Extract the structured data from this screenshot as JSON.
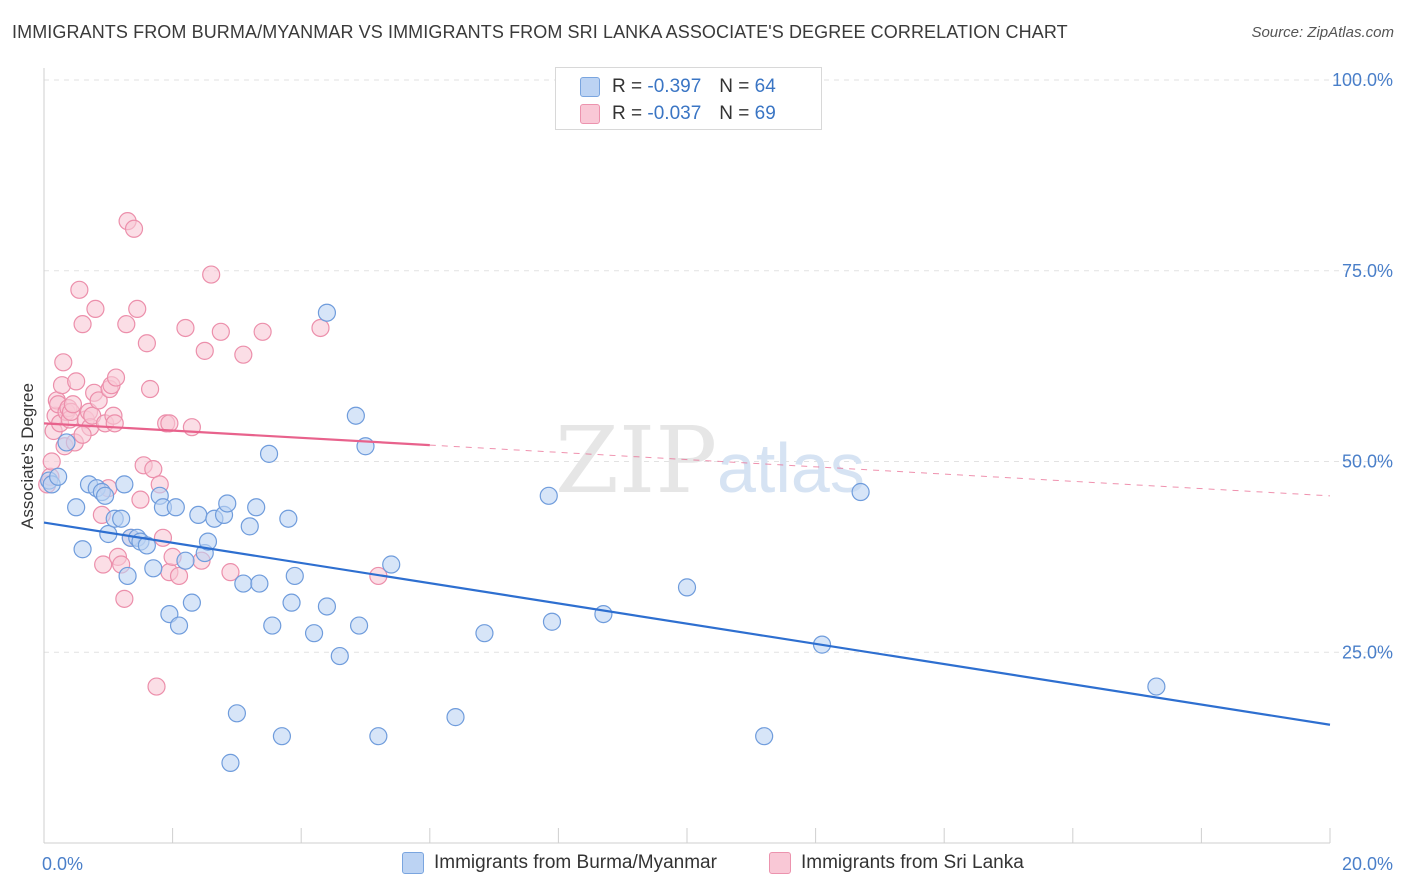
{
  "header": {
    "title": "IMMIGRANTS FROM BURMA/MYANMAR VS IMMIGRANTS FROM SRI LANKA ASSOCIATE'S DEGREE CORRELATION CHART",
    "source": "Source: ZipAtlas.com"
  },
  "watermark": {
    "zip": "ZIP",
    "atlas": "atlas"
  },
  "legend": {
    "rows": [
      {
        "r_label": "R =",
        "r_value": "-0.397",
        "n_label": "N =",
        "n_value": "64"
      },
      {
        "r_label": "R =",
        "r_value": "-0.037",
        "n_label": "N =",
        "n_value": "69"
      }
    ]
  },
  "bottom_legend": {
    "series1": "Immigrants from Burma/Myanmar",
    "series2": "Immigrants from Sri Lanka"
  },
  "colors": {
    "blue_fill": "#bcd3f3",
    "blue_stroke": "#6f9cdc",
    "blue_line": "#2e6fd0",
    "pink_fill": "#f9c8d6",
    "pink_stroke": "#ec8fab",
    "pink_line": "#e8628c",
    "tick_text": "#4a7fc9"
  },
  "chart_data": {
    "type": "scatter",
    "title": "IMMIGRANTS FROM BURMA/MYANMAR VS IMMIGRANTS FROM SRI LANKA ASSOCIATE'S DEGREE CORRELATION CHART",
    "xlabel": "",
    "ylabel": "Associate's Degree",
    "xlim": [
      0,
      20
    ],
    "ylim": [
      0,
      100
    ],
    "x_tick_labels": [
      "0.0%",
      "20.0%"
    ],
    "y_ticks": [
      25,
      50,
      75,
      100
    ],
    "y_tick_labels": [
      "25.0%",
      "50.0%",
      "75.0%",
      "100.0%"
    ],
    "grid": true,
    "legend_position": "top-center",
    "series": [
      {
        "name": "Immigrants from Burma/Myanmar",
        "r": -0.397,
        "n": 64,
        "trend": {
          "x": [
            0,
            20
          ],
          "y": [
            42.0,
            15.5
          ]
        },
        "points": [
          [
            0.08,
            47.5
          ],
          [
            0.12,
            47.0
          ],
          [
            0.22,
            48.0
          ],
          [
            0.35,
            52.5
          ],
          [
            0.5,
            44.0
          ],
          [
            0.6,
            38.5
          ],
          [
            0.7,
            47.0
          ],
          [
            0.82,
            46.5
          ],
          [
            0.9,
            46.0
          ],
          [
            0.95,
            45.5
          ],
          [
            1.0,
            40.5
          ],
          [
            1.1,
            42.5
          ],
          [
            1.2,
            42.5
          ],
          [
            1.25,
            47.0
          ],
          [
            1.3,
            35.0
          ],
          [
            1.35,
            40.0
          ],
          [
            1.45,
            40.0
          ],
          [
            1.5,
            39.5
          ],
          [
            1.6,
            39.0
          ],
          [
            1.7,
            36.0
          ],
          [
            1.8,
            45.5
          ],
          [
            1.85,
            44.0
          ],
          [
            1.95,
            30.0
          ],
          [
            2.05,
            44.0
          ],
          [
            2.1,
            28.5
          ],
          [
            2.2,
            37.0
          ],
          [
            2.3,
            31.5
          ],
          [
            2.4,
            43.0
          ],
          [
            2.5,
            38.0
          ],
          [
            2.55,
            39.5
          ],
          [
            2.65,
            42.5
          ],
          [
            2.8,
            43.0
          ],
          [
            2.85,
            44.5
          ],
          [
            3.0,
            17.0
          ],
          [
            3.1,
            34.0
          ],
          [
            3.2,
            41.5
          ],
          [
            3.3,
            44.0
          ],
          [
            3.35,
            34.0
          ],
          [
            3.5,
            51.0
          ],
          [
            3.55,
            28.5
          ],
          [
            3.7,
            14.0
          ],
          [
            3.8,
            42.5
          ],
          [
            3.85,
            31.5
          ],
          [
            3.9,
            35.0
          ],
          [
            4.2,
            27.5
          ],
          [
            4.4,
            31.0
          ],
          [
            4.4,
            69.5
          ],
          [
            4.6,
            24.5
          ],
          [
            4.85,
            56.0
          ],
          [
            4.9,
            28.5
          ],
          [
            5.0,
            52.0
          ],
          [
            5.2,
            14.0
          ],
          [
            5.4,
            36.5
          ],
          [
            6.4,
            16.5
          ],
          [
            6.85,
            27.5
          ],
          [
            7.85,
            45.5
          ],
          [
            7.9,
            29.0
          ],
          [
            8.7,
            30.0
          ],
          [
            10.0,
            33.5
          ],
          [
            11.2,
            14.0
          ],
          [
            12.1,
            26.0
          ],
          [
            12.7,
            46.0
          ],
          [
            17.3,
            20.5
          ],
          [
            2.9,
            10.5
          ]
        ]
      },
      {
        "name": "Immigrants from Sri Lanka",
        "r": -0.037,
        "n": 69,
        "trend": {
          "x": [
            0,
            20
          ],
          "y": [
            55.0,
            45.5
          ]
        },
        "trend_solid_until_x": 6.0,
        "points": [
          [
            0.05,
            47.0
          ],
          [
            0.1,
            48.0
          ],
          [
            0.12,
            50.0
          ],
          [
            0.15,
            54.0
          ],
          [
            0.18,
            56.0
          ],
          [
            0.2,
            58.0
          ],
          [
            0.22,
            57.5
          ],
          [
            0.25,
            55.0
          ],
          [
            0.28,
            60.0
          ],
          [
            0.3,
            63.0
          ],
          [
            0.32,
            52.0
          ],
          [
            0.35,
            56.5
          ],
          [
            0.38,
            57.0
          ],
          [
            0.4,
            55.5
          ],
          [
            0.42,
            56.5
          ],
          [
            0.45,
            57.5
          ],
          [
            0.48,
            52.5
          ],
          [
            0.5,
            60.5
          ],
          [
            0.55,
            72.5
          ],
          [
            0.6,
            68.0
          ],
          [
            0.65,
            55.5
          ],
          [
            0.7,
            56.5
          ],
          [
            0.72,
            54.5
          ],
          [
            0.75,
            56.0
          ],
          [
            0.78,
            59.0
          ],
          [
            0.8,
            70.0
          ],
          [
            0.85,
            58.0
          ],
          [
            0.9,
            43.0
          ],
          [
            0.92,
            36.5
          ],
          [
            0.95,
            55.0
          ],
          [
            1.0,
            46.5
          ],
          [
            1.02,
            59.5
          ],
          [
            1.05,
            60.0
          ],
          [
            1.08,
            56.0
          ],
          [
            1.1,
            55.0
          ],
          [
            1.12,
            61.0
          ],
          [
            1.15,
            37.5
          ],
          [
            1.2,
            36.5
          ],
          [
            1.25,
            32.0
          ],
          [
            1.28,
            68.0
          ],
          [
            1.3,
            81.5
          ],
          [
            1.35,
            40.0
          ],
          [
            1.4,
            80.5
          ],
          [
            1.45,
            70.0
          ],
          [
            1.5,
            45.0
          ],
          [
            1.55,
            49.5
          ],
          [
            1.6,
            65.5
          ],
          [
            1.65,
            59.5
          ],
          [
            1.7,
            49.0
          ],
          [
            1.75,
            20.5
          ],
          [
            1.8,
            47.0
          ],
          [
            1.85,
            40.0
          ],
          [
            1.9,
            55.0
          ],
          [
            1.95,
            35.5
          ],
          [
            2.0,
            37.5
          ],
          [
            2.1,
            35.0
          ],
          [
            2.2,
            67.5
          ],
          [
            2.3,
            54.5
          ],
          [
            2.45,
            37.0
          ],
          [
            2.5,
            64.5
          ],
          [
            2.6,
            74.5
          ],
          [
            2.75,
            67.0
          ],
          [
            2.9,
            35.5
          ],
          [
            3.1,
            64.0
          ],
          [
            3.4,
            67.0
          ],
          [
            4.3,
            67.5
          ],
          [
            5.2,
            35.0
          ],
          [
            1.95,
            55.0
          ],
          [
            0.6,
            53.5
          ]
        ]
      }
    ]
  }
}
